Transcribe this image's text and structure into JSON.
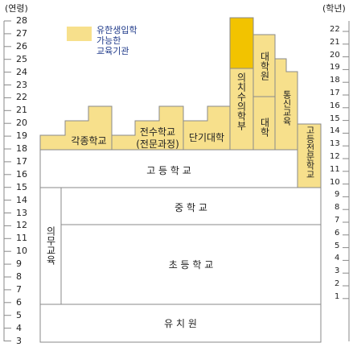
{
  "header": {
    "left": "(연령)",
    "right": "(학년)"
  },
  "legend": {
    "label": "유한생입학\n가능한\n교육기관",
    "color": "#f7e08c"
  },
  "colors": {
    "fill": "#f7e08c",
    "highlight": "#f2c300",
    "line": "#8a8a8a",
    "white": "#ffffff"
  },
  "age_axis": [
    28,
    27,
    26,
    25,
    24,
    23,
    22,
    21,
    20,
    19,
    18,
    17,
    16,
    15,
    14,
    13,
    12,
    11,
    10,
    9,
    8,
    7,
    6,
    5,
    4,
    3
  ],
  "grade_axis": [
    22,
    21,
    20,
    19,
    18,
    17,
    16,
    15,
    14,
    13,
    12,
    11,
    10,
    9,
    8,
    7,
    6,
    5,
    4,
    3,
    2,
    1
  ],
  "institutions": {
    "kindergarten": "유 치 원",
    "elementary": "초 등 학 교",
    "middle": "중 학 교",
    "high": "고 등 학 교",
    "compulsory": "의무교육",
    "misc_school": "각종학교",
    "specialized_1": "전수학교",
    "specialized_2": "(전문과정)",
    "junior_college": "단기대학",
    "medical": "의치수의학부",
    "grad_school": "대학원",
    "university": "대학",
    "correspondence": "통신교육",
    "tech_college": "고등전문학교"
  }
}
